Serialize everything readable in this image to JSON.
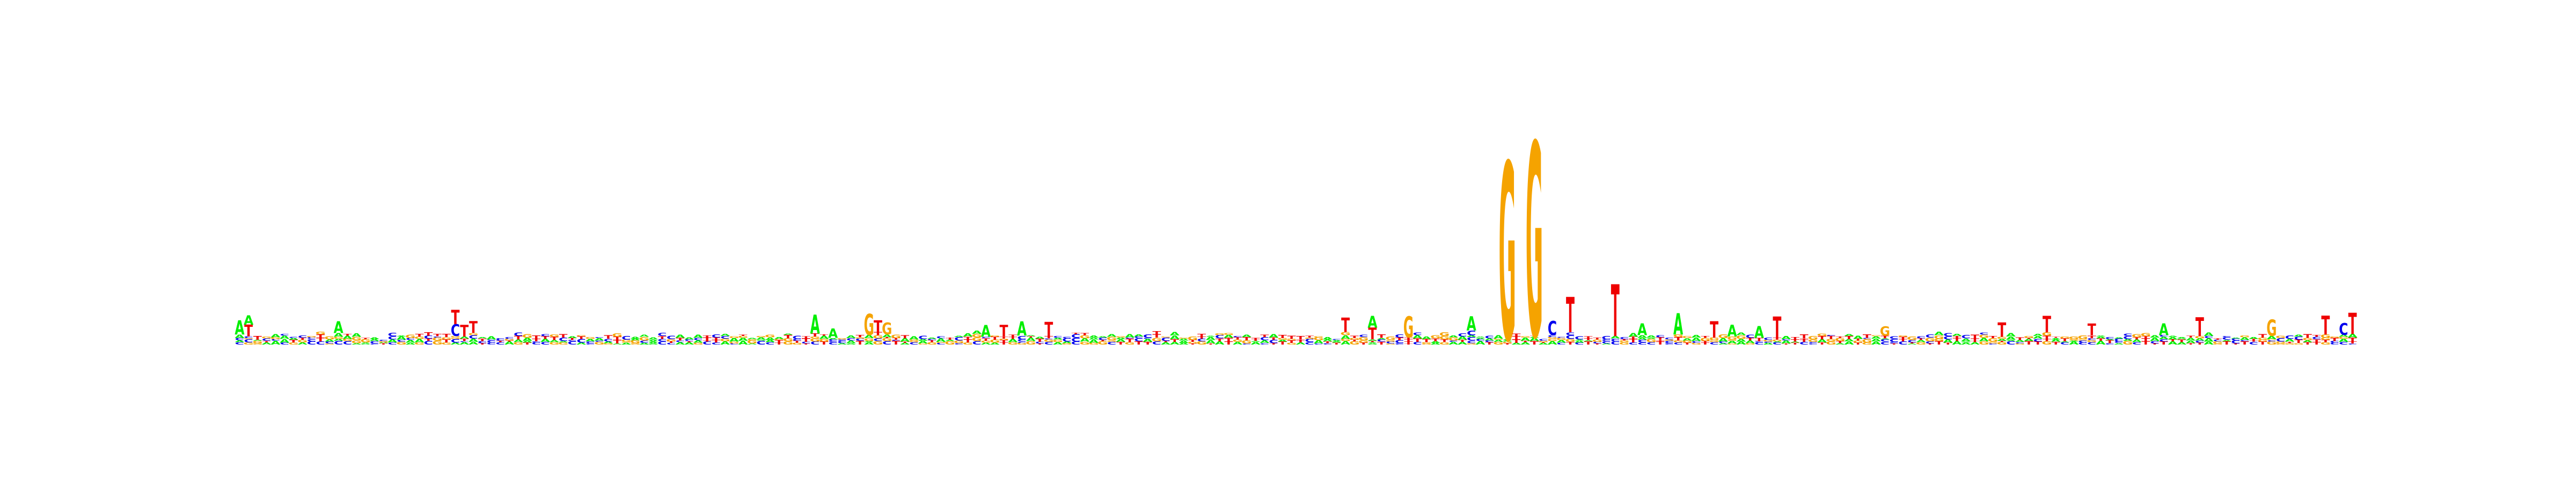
{
  "colors": {
    "A": "#00ee00",
    "C": "#0000ee",
    "G": "#f5a300",
    "T": "#ee0000",
    "background": "#ffffff"
  },
  "chart_data": {
    "type": "sequence-logo",
    "title": "",
    "xlabel": "",
    "ylabel": "",
    "alphabet": [
      "A",
      "C",
      "G",
      "T"
    ],
    "ylim": [
      0,
      2
    ],
    "positions": [
      "TA",
      "CT",
      "",
      "G",
      "A",
      "",
      "",
      "CT",
      "C",
      "TT",
      "TC",
      "CA",
      "CA",
      "AC",
      "AG",
      "",
      "",
      "AT",
      "AG",
      "AC",
      "A",
      "GA",
      "AC",
      "CG",
      "AG",
      "GT",
      "TC",
      "CG",
      "CG",
      "TA",
      "CT",
      "GA",
      "GC",
      "CA",
      "GA",
      "AT",
      "CT",
      "TA",
      "AT",
      "CA",
      "GT",
      "TC",
      "CG",
      "GT",
      "AC",
      "TA",
      "AC",
      "",
      "AG",
      "GA",
      "CT",
      "",
      "AG",
      "GA",
      "AC",
      "CA",
      "AT",
      "GA",
      "CT",
      "A",
      "GT",
      "CA",
      "TA",
      "CA",
      "GC",
      "",
      "AT",
      "CT",
      "CA",
      "G",
      "AT",
      "GC",
      "C",
      "A",
      "GG",
      "T",
      "CT",
      "CA",
      "GA",
      "CA",
      "AG",
      "GT",
      "T",
      "CA",
      "TT",
      "CG",
      "TC",
      "GA",
      "AC",
      "CA",
      "AT",
      "AT",
      "GC",
      "",
      "CA",
      "AG",
      "TC",
      "",
      "GA",
      "CT",
      "AC",
      "TA",
      "GA",
      "A",
      "TT",
      "CA",
      "GC",
      "AT",
      "GA",
      "TT",
      "CT",
      "TA",
      "AC",
      "CT",
      "AA",
      "CT",
      "GA",
      "GT",
      "GC",
      "AT",
      "CT",
      "CA",
      "AG",
      "AG",
      "TC",
      "TG",
      "GA",
      "TT",
      "CA",
      "CG",
      "AT",
      "CG",
      "TA",
      "AT",
      "TC",
      "CG",
      "AT",
      "CT",
      "TA",
      "CC",
      "TG",
      "AC",
      "GT",
      "TA",
      "AT",
      "TC"
    ]
  }
}
